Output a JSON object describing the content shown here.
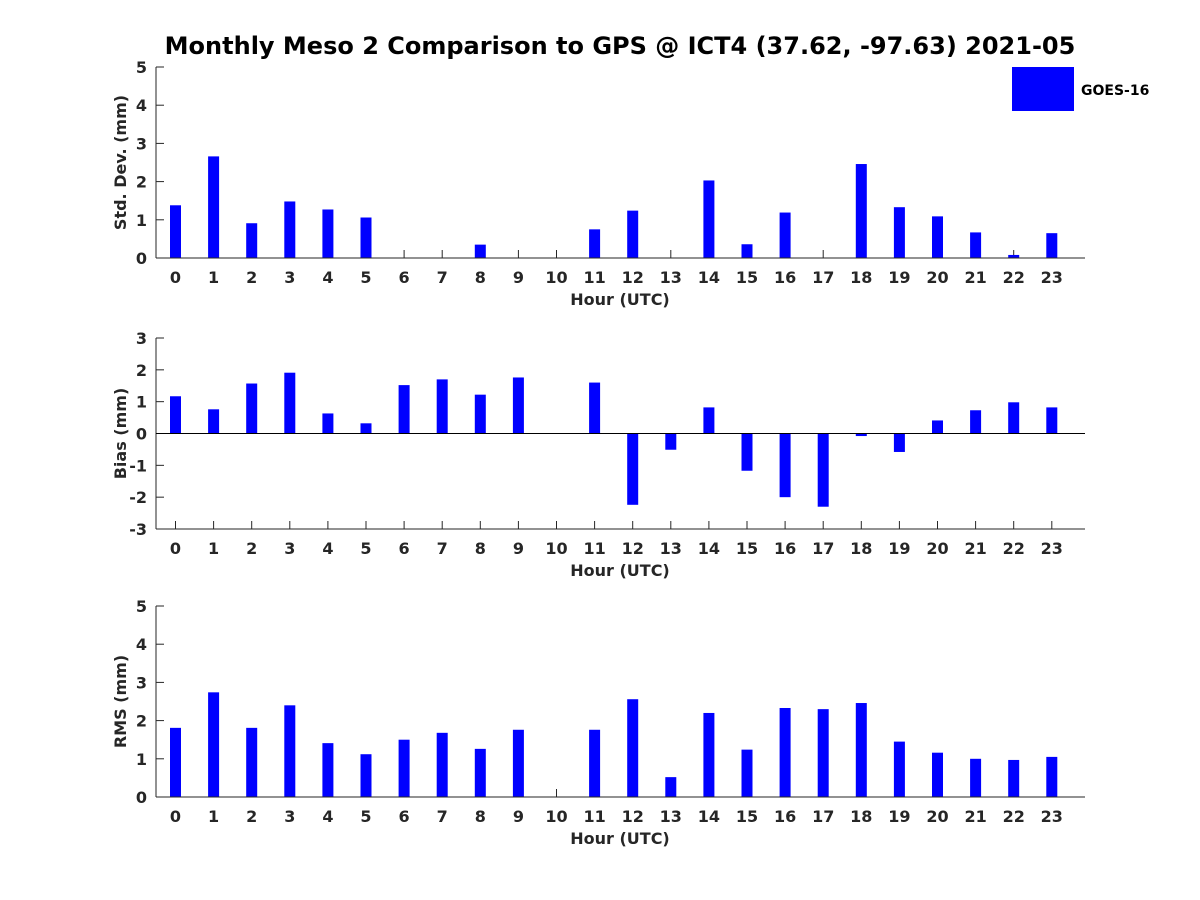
{
  "title": "Monthly Meso 2 Comparison to GPS @ ICT4 (37.62, -97.63) 2021-05",
  "legend": {
    "label": "GOES-16",
    "color": "#0000ff"
  },
  "chart_data": [
    {
      "id": "stddev",
      "type": "bar",
      "ylabel": "Std. Dev. (mm)",
      "xlabel": "Hour (UTC)",
      "ylim": [
        0,
        5
      ],
      "yticks": [
        "0",
        "1",
        "2",
        "3",
        "4",
        "5"
      ],
      "categories": [
        "0",
        "1",
        "2",
        "3",
        "4",
        "5",
        "6",
        "7",
        "8",
        "9",
        "10",
        "11",
        "12",
        "13",
        "14",
        "15",
        "16",
        "17",
        "18",
        "19",
        "20",
        "21",
        "22",
        "23"
      ],
      "series": [
        {
          "name": "GOES-16",
          "values": [
            1.38,
            2.66,
            0.91,
            1.48,
            1.27,
            1.06,
            null,
            null,
            0.35,
            null,
            null,
            0.75,
            1.24,
            null,
            2.03,
            0.36,
            1.19,
            null,
            2.46,
            1.33,
            1.09,
            0.67,
            0.08,
            0.65
          ]
        }
      ]
    },
    {
      "id": "bias",
      "type": "bar",
      "ylabel": "Bias (mm)",
      "xlabel": "Hour (UTC)",
      "ylim": [
        -3,
        3
      ],
      "yticks": [
        "-3",
        "-2",
        "-1",
        "0",
        "1",
        "2",
        "3"
      ],
      "categories": [
        "0",
        "1",
        "2",
        "3",
        "4",
        "5",
        "6",
        "7",
        "8",
        "9",
        "10",
        "11",
        "12",
        "13",
        "14",
        "15",
        "16",
        "17",
        "18",
        "19",
        "20",
        "21",
        "22",
        "23"
      ],
      "series": [
        {
          "name": "GOES-16",
          "values": [
            1.17,
            0.76,
            1.57,
            1.91,
            0.63,
            0.32,
            1.52,
            1.7,
            1.22,
            1.76,
            null,
            1.6,
            -2.24,
            -0.51,
            0.82,
            -1.17,
            -2.0,
            -2.3,
            -0.08,
            -0.58,
            0.41,
            0.73,
            0.98,
            0.82
          ]
        }
      ]
    },
    {
      "id": "rms",
      "type": "bar",
      "ylabel": "RMS (mm)",
      "xlabel": "Hour (UTC)",
      "ylim": [
        0,
        5
      ],
      "yticks": [
        "0",
        "1",
        "2",
        "3",
        "4",
        "5"
      ],
      "categories": [
        "0",
        "1",
        "2",
        "3",
        "4",
        "5",
        "6",
        "7",
        "8",
        "9",
        "10",
        "11",
        "12",
        "13",
        "14",
        "15",
        "16",
        "17",
        "18",
        "19",
        "20",
        "21",
        "22",
        "23"
      ],
      "series": [
        {
          "name": "GOES-16",
          "values": [
            1.81,
            2.74,
            1.81,
            2.4,
            1.41,
            1.12,
            1.5,
            1.68,
            1.26,
            1.76,
            null,
            1.76,
            2.56,
            0.52,
            2.2,
            1.24,
            2.33,
            2.3,
            2.46,
            1.45,
            1.16,
            1.0,
            0.97,
            1.05
          ]
        }
      ]
    }
  ]
}
